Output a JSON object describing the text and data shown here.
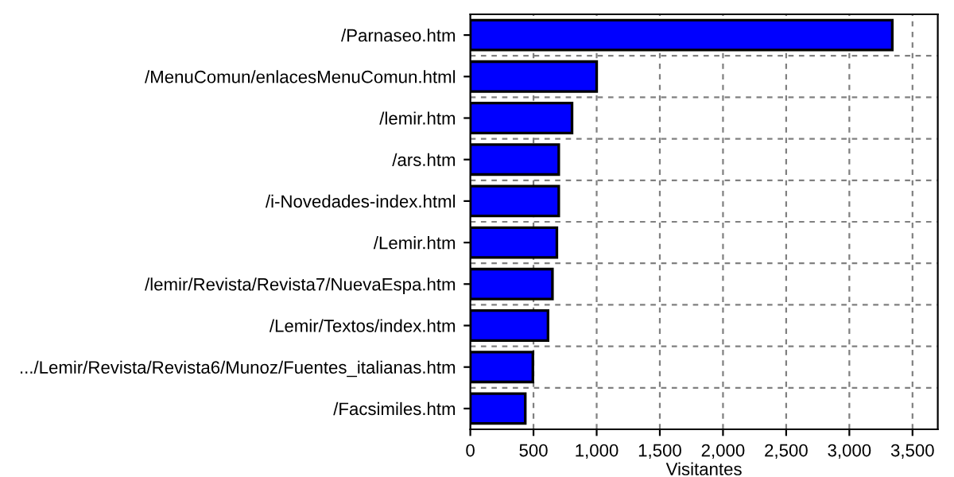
{
  "chart_data": {
    "type": "bar",
    "orientation": "horizontal",
    "xlabel": "Visitantes",
    "categories": [
      "/Parnaseo.htm",
      "/MenuComun/enlacesMenuComun.html",
      "/lemir.htm",
      "/ars.htm",
      "/i-Novedades-index.html",
      "/Lemir.htm",
      "/lemir/Revista/Revista7/NuevaEspa.htm",
      "/Lemir/Textos/index.htm",
      ".../Lemir/Revista/Revista6/Munoz/Fuentes_italianas.htm",
      "/Facsimiles.htm"
    ],
    "values": [
      3340,
      1000,
      805,
      700,
      700,
      685,
      650,
      615,
      495,
      435
    ],
    "color": "#0000ff",
    "xlim": [
      0,
      3700
    ],
    "xticks": [
      0,
      {
        "value": 500,
        "label": "500"
      },
      {
        "value": 1000,
        "label": "1,000"
      },
      {
        "value": 1500,
        "label": "1,500"
      },
      {
        "value": 2000,
        "label": "2,000"
      },
      {
        "value": 2500,
        "label": "2,500"
      },
      {
        "value": 3000,
        "label": "3,000"
      },
      {
        "value": 3500,
        "label": "3,500"
      }
    ],
    "grid": true
  }
}
